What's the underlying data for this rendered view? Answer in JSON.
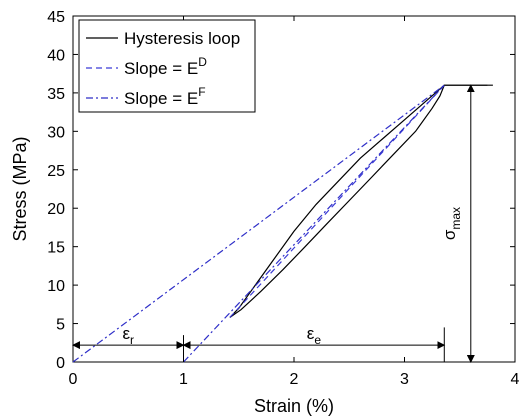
{
  "chart_data": {
    "type": "line",
    "xlabel": "Strain (%)",
    "ylabel": "Stress (MPa)",
    "xlim": [
      0,
      4
    ],
    "ylim": [
      0,
      45
    ],
    "xticks": [
      0,
      1,
      2,
      3,
      4
    ],
    "yticks": [
      0,
      5,
      10,
      15,
      20,
      25,
      30,
      35,
      40,
      45
    ],
    "grid": false,
    "legend_position": "top-left",
    "legend": [
      {
        "label": "Hysteresis loop",
        "sup": "",
        "style": "solid",
        "color": "#000000"
      },
      {
        "label": "Slope = E",
        "sup": "D",
        "style": "dashed",
        "color": "#3b3bd6"
      },
      {
        "label": "Slope = E",
        "sup": "F",
        "style": "dashdot",
        "color": "#2f2fc8"
      }
    ],
    "series": [
      {
        "name": "Hysteresis loop",
        "style": "solid",
        "color": "#000000",
        "points": [
          [
            1.42,
            5.8
          ],
          [
            1.52,
            6.8
          ],
          [
            1.7,
            9.2
          ],
          [
            1.9,
            12.0
          ],
          [
            2.1,
            15.0
          ],
          [
            2.3,
            18.0
          ],
          [
            2.5,
            21.0
          ],
          [
            2.7,
            24.0
          ],
          [
            2.9,
            27.0
          ],
          [
            3.1,
            30.0
          ],
          [
            3.25,
            33.0
          ],
          [
            3.32,
            34.6
          ],
          [
            3.36,
            36.0
          ],
          [
            3.8,
            36.0
          ]
        ],
        "return_points": [
          [
            3.36,
            36.0
          ],
          [
            3.2,
            34.0
          ],
          [
            3.0,
            31.5
          ],
          [
            2.8,
            29.0
          ],
          [
            2.6,
            26.5
          ],
          [
            2.4,
            23.5
          ],
          [
            2.2,
            20.5
          ],
          [
            2.0,
            17.0
          ],
          [
            1.8,
            13.0
          ],
          [
            1.6,
            9.0
          ],
          [
            1.5,
            7.0
          ],
          [
            1.42,
            5.8
          ]
        ]
      },
      {
        "name": "Slope = E^D",
        "style": "dashed",
        "color": "#3b3bd6",
        "points": [
          [
            1.42,
            5.8
          ],
          [
            3.36,
            36.0
          ]
        ]
      },
      {
        "name": "Slope = E^F",
        "style": "dashdot",
        "color": "#2f2fc8",
        "points": [
          [
            0,
            0
          ],
          [
            3.36,
            36.0
          ]
        ],
        "points_b": [
          [
            1.0,
            0
          ],
          [
            3.36,
            36.0
          ]
        ]
      }
    ],
    "annotations": [
      {
        "id": "eps-r",
        "symbol": "ε",
        "sub": "r",
        "from": [
          0,
          2.2
        ],
        "to": [
          1.0,
          2.2
        ]
      },
      {
        "id": "eps-e",
        "symbol": "ε",
        "sub": "e",
        "from": [
          1.0,
          2.2
        ],
        "to": [
          3.36,
          2.2
        ]
      },
      {
        "id": "sigma-max",
        "symbol": "σ",
        "sub": "max",
        "from": [
          3.6,
          0
        ],
        "to": [
          3.6,
          36.0
        ]
      }
    ]
  }
}
